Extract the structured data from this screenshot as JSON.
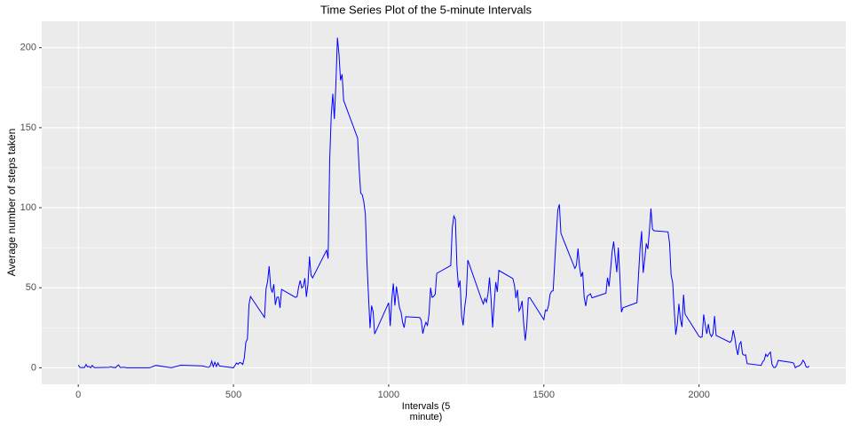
{
  "chart_data": {
    "type": "line",
    "title": "Time Series Plot of the 5-minute Intervals",
    "xlabel": "Intervals (5\nminute)",
    "ylabel": "Average number of steps taken",
    "xlim": [
      -117.75,
      2472.75
    ],
    "ylim": [
      -10.31,
      216.48
    ],
    "xticks": [
      0,
      500,
      1000,
      1500,
      2000
    ],
    "yticks": [
      0,
      50,
      100,
      150,
      200
    ],
    "grid": true,
    "series": [
      {
        "color": "#0000ff",
        "x": [
          0,
          5,
          10,
          15,
          20,
          25,
          30,
          35,
          40,
          45,
          50,
          55,
          100,
          105,
          110,
          115,
          120,
          125,
          130,
          135,
          140,
          145,
          150,
          155,
          200,
          230,
          250,
          300,
          330,
          400,
          415,
          420,
          425,
          430,
          435,
          440,
          445,
          450,
          455,
          500,
          510,
          515,
          520,
          525,
          530,
          535,
          540,
          545,
          550,
          555,
          600,
          605,
          610,
          615,
          620,
          625,
          630,
          635,
          640,
          645,
          650,
          655,
          700,
          705,
          710,
          715,
          720,
          725,
          730,
          735,
          740,
          745,
          750,
          755,
          800,
          805,
          810,
          815,
          820,
          825,
          830,
          835,
          840,
          845,
          850,
          855,
          900,
          905,
          910,
          915,
          920,
          925,
          930,
          935,
          940,
          945,
          950,
          955,
          1000,
          1005,
          1010,
          1015,
          1020,
          1025,
          1030,
          1035,
          1040,
          1045,
          1050,
          1055,
          1100,
          1105,
          1110,
          1115,
          1120,
          1125,
          1130,
          1135,
          1140,
          1145,
          1150,
          1155,
          1200,
          1205,
          1210,
          1215,
          1220,
          1225,
          1230,
          1235,
          1240,
          1245,
          1250,
          1255,
          1300,
          1305,
          1310,
          1315,
          1320,
          1325,
          1330,
          1335,
          1340,
          1345,
          1350,
          1355,
          1400,
          1405,
          1410,
          1415,
          1420,
          1425,
          1430,
          1435,
          1440,
          1445,
          1450,
          1455,
          1500,
          1505,
          1510,
          1515,
          1520,
          1525,
          1530,
          1535,
          1540,
          1545,
          1550,
          1555,
          1600,
          1605,
          1610,
          1615,
          1620,
          1625,
          1630,
          1635,
          1640,
          1645,
          1650,
          1655,
          1700,
          1705,
          1710,
          1715,
          1720,
          1725,
          1730,
          1735,
          1740,
          1745,
          1750,
          1755,
          1800,
          1805,
          1810,
          1815,
          1820,
          1825,
          1830,
          1835,
          1840,
          1845,
          1850,
          1855,
          1900,
          1905,
          1910,
          1915,
          1920,
          1925,
          1930,
          1935,
          1940,
          1945,
          1950,
          1955,
          2000,
          2005,
          2010,
          2015,
          2020,
          2025,
          2030,
          2035,
          2040,
          2045,
          2050,
          2055,
          2100,
          2105,
          2110,
          2115,
          2120,
          2125,
          2130,
          2135,
          2140,
          2145,
          2150,
          2155,
          2200,
          2205,
          2210,
          2215,
          2220,
          2225,
          2230,
          2235,
          2240,
          2245,
          2250,
          2255,
          2300,
          2305,
          2310,
          2315,
          2320,
          2325,
          2330,
          2335,
          2340,
          2345,
          2350,
          2355
        ],
        "values": [
          1.7,
          0.3,
          0.1,
          0.2,
          0.1,
          2.1,
          0.5,
          0.9,
          0,
          1.5,
          0.3,
          0.1,
          0.3,
          0.7,
          0.2,
          0.3,
          0,
          1.1,
          1.8,
          0.2,
          0.2,
          0.3,
          0.3,
          0,
          0,
          0,
          1.5,
          0,
          1.6,
          1.2,
          0.4,
          0.3,
          1.0,
          4.1,
          0.7,
          3.5,
          0.8,
          3.1,
          1.1,
          0,
          3.0,
          2.2,
          3.3,
          3.0,
          2.1,
          6.1,
          16,
          18,
          39.5,
          44.5,
          31.5,
          49.3,
          53.8,
          63.5,
          50,
          47,
          52.2,
          39.3,
          44,
          44.2,
          37.4,
          49,
          44,
          44.4,
          50.6,
          54.5,
          49.9,
          50.9,
          56,
          44.3,
          52.3,
          69.5,
          57.8,
          56.2,
          73.4,
          68.2,
          129.4,
          157.5,
          171.2,
          155.4,
          177.3,
          206.2,
          195.9,
          179.6,
          183.4,
          167,
          143.5,
          124,
          109.1,
          108.1,
          103.7,
          95.97,
          66.2,
          45.2,
          24.8,
          38.8,
          34.98,
          21.1,
          40.6,
          26.1,
          42.4,
          52.7,
          38.9,
          50.8,
          44.3,
          37.4,
          34.7,
          28.3,
          25.1,
          31.9,
          31.4,
          29.7,
          21.3,
          25.5,
          28.4,
          26.5,
          33.4,
          50,
          44,
          44.6,
          46,
          59,
          63.9,
          87.6,
          94.8,
          92.8,
          63.4,
          50.2,
          54.5,
          32.4,
          26.5,
          37.7,
          45.1,
          67.3,
          42.3,
          39.9,
          43.3,
          40.98,
          46.2,
          56.4,
          42.8,
          25.1,
          39.97,
          53.5,
          47.4,
          60.8,
          55.8,
          51.96,
          43.6,
          48.7,
          35.5,
          37.5,
          41.8,
          27.5,
          17.1,
          26.2,
          43.6,
          43.8,
          30.0,
          36.1,
          35.5,
          38.8,
          45.96,
          47.8,
          48.1,
          65.3,
          82.9,
          98.7,
          102.1,
          84.0,
          62.1,
          64.1,
          74.5,
          63.2,
          56.9,
          59.8,
          43.9,
          38.6,
          44.7,
          45.5,
          46.2,
          43.7,
          46.6,
          56.3,
          50.7,
          61.2,
          72.7,
          78.9,
          68.9,
          59.7,
          75.1,
          56.5,
          34.8,
          37.5,
          40.7,
          58.0,
          74.7,
          85.3,
          59.3,
          67.8,
          77.7,
          74.2,
          85.3,
          99.5,
          86.6,
          85.6,
          84.9,
          77.8,
          58.0,
          53.4,
          36.3,
          20.7,
          27.4,
          40.0,
          30.2,
          25.5,
          45.7,
          33.5,
          19.6,
          19.0,
          19.3,
          33.3,
          26.8,
          21.2,
          27.3,
          21.3,
          19.5,
          21.3,
          32.3,
          20.2,
          15.9,
          17.2,
          23.5,
          19.2,
          12.5,
          8.0,
          14.7,
          16.3,
          8.7,
          7.8,
          8.1,
          2.6,
          1.5,
          3.7,
          4.8,
          8.5,
          7.1,
          8.7,
          9.8,
          2.2,
          0.3,
          0.1,
          1.6,
          4.6,
          3.3,
          2.8,
          0,
          0.8,
          0.96,
          1.6,
          2.6,
          4.7,
          3.3,
          0.6,
          0.2,
          1.1
        ]
      }
    ]
  }
}
